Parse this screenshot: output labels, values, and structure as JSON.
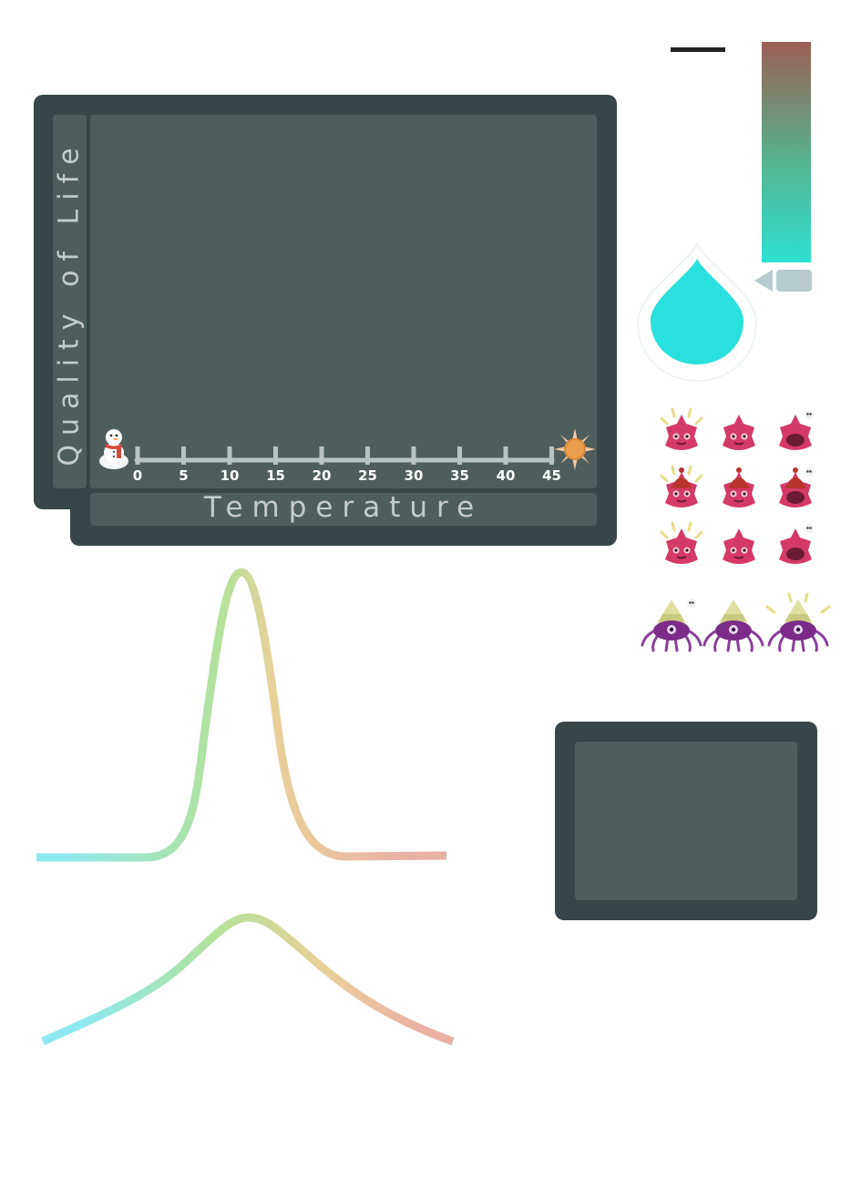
{
  "graph": {
    "y_axis_label": "Quality of Life",
    "x_axis_label": "Temperature",
    "x_ticks": [
      "0",
      "5",
      "10",
      "15",
      "20",
      "25",
      "30",
      "35",
      "40",
      "45"
    ],
    "cold_icon": "snowman-icon",
    "hot_icon": "sun-icon"
  },
  "thermometer": {
    "gradient_colors": [
      "#9b5f54",
      "#55b490",
      "#2ee0d2"
    ],
    "drop_color": "#2ae0dc"
  },
  "creature_sprites": {
    "pink_rows": [
      [
        "excited",
        "neutral",
        "skull-alert"
      ],
      [
        "excited-hat",
        "neutral-hat",
        "skull-alert-hat"
      ],
      [
        "excited",
        "neutral",
        "skull-alert"
      ]
    ],
    "purple_row": [
      "skull-alert",
      "neutral",
      "excited"
    ]
  },
  "curves": {
    "narrow_curve_colors": [
      "#8de8f0",
      "#b2e29a",
      "#e9d09a",
      "#eab0a4"
    ],
    "wide_curve_colors": [
      "#8de8f0",
      "#b2e29a",
      "#e9d09a",
      "#eab0a4"
    ]
  }
}
